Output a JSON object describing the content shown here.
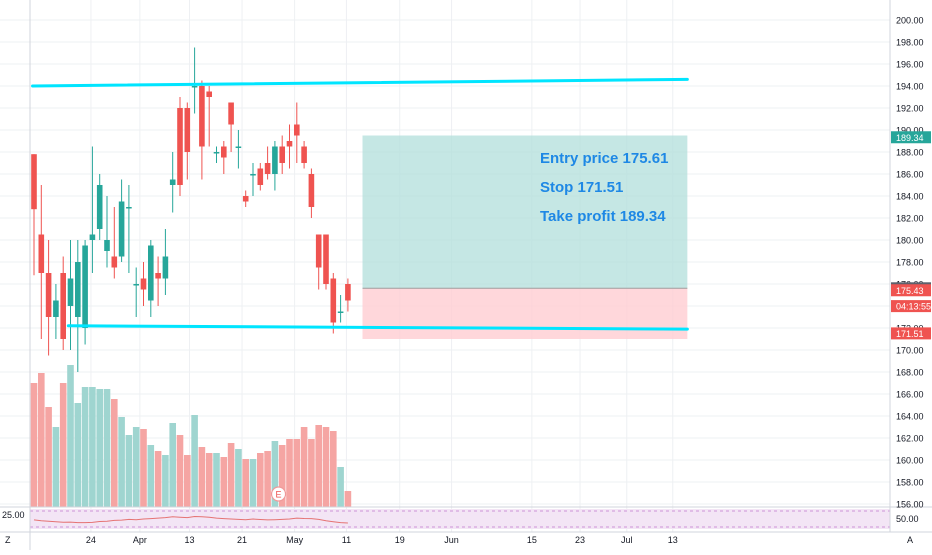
{
  "chart_data": {
    "type": "candlestick",
    "price_axis": {
      "range": [
        155.2,
        201.5
      ],
      "ticks": [
        "200.00",
        "198.00",
        "196.00",
        "194.00",
        "192.00",
        "190.00",
        "188.00",
        "186.00",
        "184.00",
        "182.00",
        "180.00",
        "178.00",
        "176.00",
        "174.00",
        "172.00",
        "170.00",
        "168.00",
        "166.00",
        "164.00",
        "162.00",
        "160.00",
        "158.00",
        "156.00"
      ]
    },
    "time_axis": {
      "ticks": [
        {
          "label": "24",
          "index": 7.8
        },
        {
          "label": "Apr",
          "index": 14.5
        },
        {
          "label": "13",
          "index": 21.3
        },
        {
          "label": "21",
          "index": 28.5
        },
        {
          "label": "May",
          "index": 35.7
        },
        {
          "label": "11",
          "index": 42.8
        },
        {
          "label": "19",
          "index": 50.1
        },
        {
          "label": "Jun",
          "index": 57.2
        },
        {
          "label": "15",
          "index": 68.2
        },
        {
          "label": "23",
          "index": 74.8
        },
        {
          "label": "Jul",
          "index": 81.2
        },
        {
          "label": "13",
          "index": 87.5
        }
      ]
    },
    "candles": [
      {
        "o": 187.8,
        "h": 187.8,
        "l": 176.8,
        "c": 182.8,
        "v": 0.62
      },
      {
        "o": 180.5,
        "h": 185.0,
        "l": 171.0,
        "c": 177.0,
        "v": 0.67
      },
      {
        "o": 177.0,
        "h": 180.0,
        "l": 169.5,
        "c": 173.0,
        "v": 0.5
      },
      {
        "o": 173.0,
        "h": 176.0,
        "l": 171.0,
        "c": 174.5,
        "v": 0.4
      },
      {
        "o": 177.0,
        "h": 178.5,
        "l": 170.0,
        "c": 171.0,
        "v": 0.62
      },
      {
        "o": 174.0,
        "h": 180.0,
        "l": 170.0,
        "c": 176.5,
        "v": 0.71
      },
      {
        "o": 173.0,
        "h": 180.0,
        "l": 168.0,
        "c": 178.0,
        "v": 0.52
      },
      {
        "o": 172.0,
        "h": 180.0,
        "l": 170.5,
        "c": 179.5,
        "v": 0.6
      },
      {
        "o": 180.0,
        "h": 188.5,
        "l": 177.0,
        "c": 180.5,
        "v": 0.6
      },
      {
        "o": 181.0,
        "h": 186.0,
        "l": 180.0,
        "c": 185.0,
        "v": 0.59
      },
      {
        "o": 179.0,
        "h": 184.0,
        "l": 177.5,
        "c": 180.0,
        "v": 0.59
      },
      {
        "o": 178.5,
        "h": 183.0,
        "l": 176.5,
        "c": 177.5,
        "v": 0.54
      },
      {
        "o": 178.5,
        "h": 185.5,
        "l": 178.0,
        "c": 183.5,
        "v": 0.45
      },
      {
        "o": 183.0,
        "h": 185.0,
        "l": 177.0,
        "c": 183.0,
        "v": 0.36
      },
      {
        "o": 176.0,
        "h": 177.5,
        "l": 173.0,
        "c": 176.0,
        "v": 0.4
      },
      {
        "o": 176.5,
        "h": 178.0,
        "l": 174.0,
        "c": 175.5,
        "v": 0.39
      },
      {
        "o": 174.5,
        "h": 180.0,
        "l": 173.0,
        "c": 179.5,
        "v": 0.31
      },
      {
        "o": 177.0,
        "h": 178.5,
        "l": 174.0,
        "c": 176.5,
        "v": 0.28
      },
      {
        "o": 176.5,
        "h": 181.0,
        "l": 175.0,
        "c": 178.5,
        "v": 0.26
      },
      {
        "o": 185.0,
        "h": 188.0,
        "l": 182.5,
        "c": 185.5,
        "v": 0.42
      },
      {
        "o": 192.0,
        "h": 193.0,
        "l": 184.0,
        "c": 185.0,
        "v": 0.36
      },
      {
        "o": 192.0,
        "h": 192.5,
        "l": 185.5,
        "c": 188.0,
        "v": 0.26
      },
      {
        "o": 194.0,
        "h": 197.5,
        "l": 191.5,
        "c": 194.0,
        "v": 0.46
      },
      {
        "o": 194.0,
        "h": 194.5,
        "l": 185.5,
        "c": 188.5,
        "v": 0.3
      },
      {
        "o": 193.5,
        "h": 194.0,
        "l": 188.5,
        "c": 193.0,
        "v": 0.27
      },
      {
        "o": 188.0,
        "h": 188.5,
        "l": 187.0,
        "c": 188.0,
        "v": 0.27
      },
      {
        "o": 188.5,
        "h": 189.0,
        "l": 186.0,
        "c": 187.5,
        "v": 0.25
      },
      {
        "o": 192.5,
        "h": 192.5,
        "l": 188.0,
        "c": 190.5,
        "v": 0.32
      },
      {
        "o": 188.5,
        "h": 190.0,
        "l": 186.5,
        "c": 188.5,
        "v": 0.29
      },
      {
        "o": 184.0,
        "h": 184.5,
        "l": 183.0,
        "c": 183.5,
        "v": 0.24
      },
      {
        "o": 186.0,
        "h": 187.0,
        "l": 184.0,
        "c": 186.0,
        "v": 0.24
      },
      {
        "o": 186.5,
        "h": 187.0,
        "l": 184.5,
        "c": 185.0,
        "v": 0.27
      },
      {
        "o": 187.0,
        "h": 188.5,
        "l": 185.5,
        "c": 186.0,
        "v": 0.28
      },
      {
        "o": 186.0,
        "h": 189.0,
        "l": 184.5,
        "c": 188.5,
        "v": 0.33
      },
      {
        "o": 188.5,
        "h": 189.5,
        "l": 186.0,
        "c": 187.0,
        "v": 0.31
      },
      {
        "o": 189.0,
        "h": 190.5,
        "l": 186.5,
        "c": 188.5,
        "v": 0.34
      },
      {
        "o": 190.5,
        "h": 192.5,
        "l": 187.0,
        "c": 189.5,
        "v": 0.34
      },
      {
        "o": 188.5,
        "h": 189.0,
        "l": 186.5,
        "c": 187.0,
        "v": 0.4
      },
      {
        "o": 186.0,
        "h": 186.5,
        "l": 182.0,
        "c": 183.0,
        "v": 0.34
      },
      {
        "o": 180.5,
        "h": 180.5,
        "l": 175.5,
        "c": 177.5,
        "v": 0.41
      },
      {
        "o": 180.5,
        "h": 180.5,
        "l": 175.5,
        "c": 176.0,
        "v": 0.4
      },
      {
        "o": 176.5,
        "h": 177.0,
        "l": 171.5,
        "c": 172.5,
        "v": 0.38
      },
      {
        "o": 173.5,
        "h": 175.0,
        "l": 172.5,
        "c": 173.5,
        "v": 0.2
      },
      {
        "o": 176.0,
        "h": 176.5,
        "l": 173.5,
        "c": 174.5,
        "v": 0.08
      }
    ],
    "lines": [
      {
        "name": "resistance",
        "from": {
          "index": -0.2,
          "price": 194.0
        },
        "to": {
          "index": 89.5,
          "price": 194.6
        }
      },
      {
        "name": "support",
        "from": {
          "index": 4.7,
          "price": 172.2
        },
        "to": {
          "index": 89.5,
          "price": 171.9
        }
      }
    ],
    "position": {
      "entry": 175.61,
      "stop": 171.51,
      "take_profit": 189.34,
      "start_index": 45.0,
      "end_index": 89.5,
      "stop_zone_bottom": 171.0,
      "target_zone_top": 189.5
    },
    "price_labels": [
      {
        "text": "189.34",
        "price": 189.34,
        "color": "#26a69a"
      },
      {
        "text": "175.61",
        "price": 175.61,
        "color": "#5d606b"
      },
      {
        "text": "175.43",
        "price": 175.43,
        "color": "#ef5350"
      },
      {
        "text": "04:13:55",
        "price": 173.99,
        "color": "#ef5350"
      },
      {
        "text": "171.51",
        "price": 171.51,
        "color": "#ef5350"
      }
    ],
    "annotations": [
      "Entry price 175.61",
      "Stop 171.51",
      "Take profit 189.34"
    ],
    "earnings_marker": {
      "label": "E",
      "index": 33.5
    },
    "oscillator": {
      "left_label": "25.00",
      "right_label": "50.00",
      "series": [
        45,
        40,
        38,
        35,
        32,
        33,
        30,
        30,
        31,
        36,
        38,
        42,
        44,
        48,
        46,
        50,
        52,
        55,
        58,
        62,
        60,
        58,
        64,
        62,
        60,
        55,
        52,
        50,
        48,
        46,
        50,
        47,
        45,
        46,
        48,
        50,
        55,
        53,
        52,
        48,
        40,
        35,
        30,
        28
      ]
    },
    "corner_labels": {
      "left": "Z",
      "right": "A"
    },
    "grid": true,
    "colors": {
      "up": "#26a69a",
      "down": "#ef5350",
      "line": "#00e5ff",
      "target_zone": "#b2dfdb",
      "stop_zone": "#ffcdd2",
      "annotation": "#1e88e5",
      "volume_up": "#9fd5d0",
      "volume_down": "#f5a5a3"
    }
  }
}
